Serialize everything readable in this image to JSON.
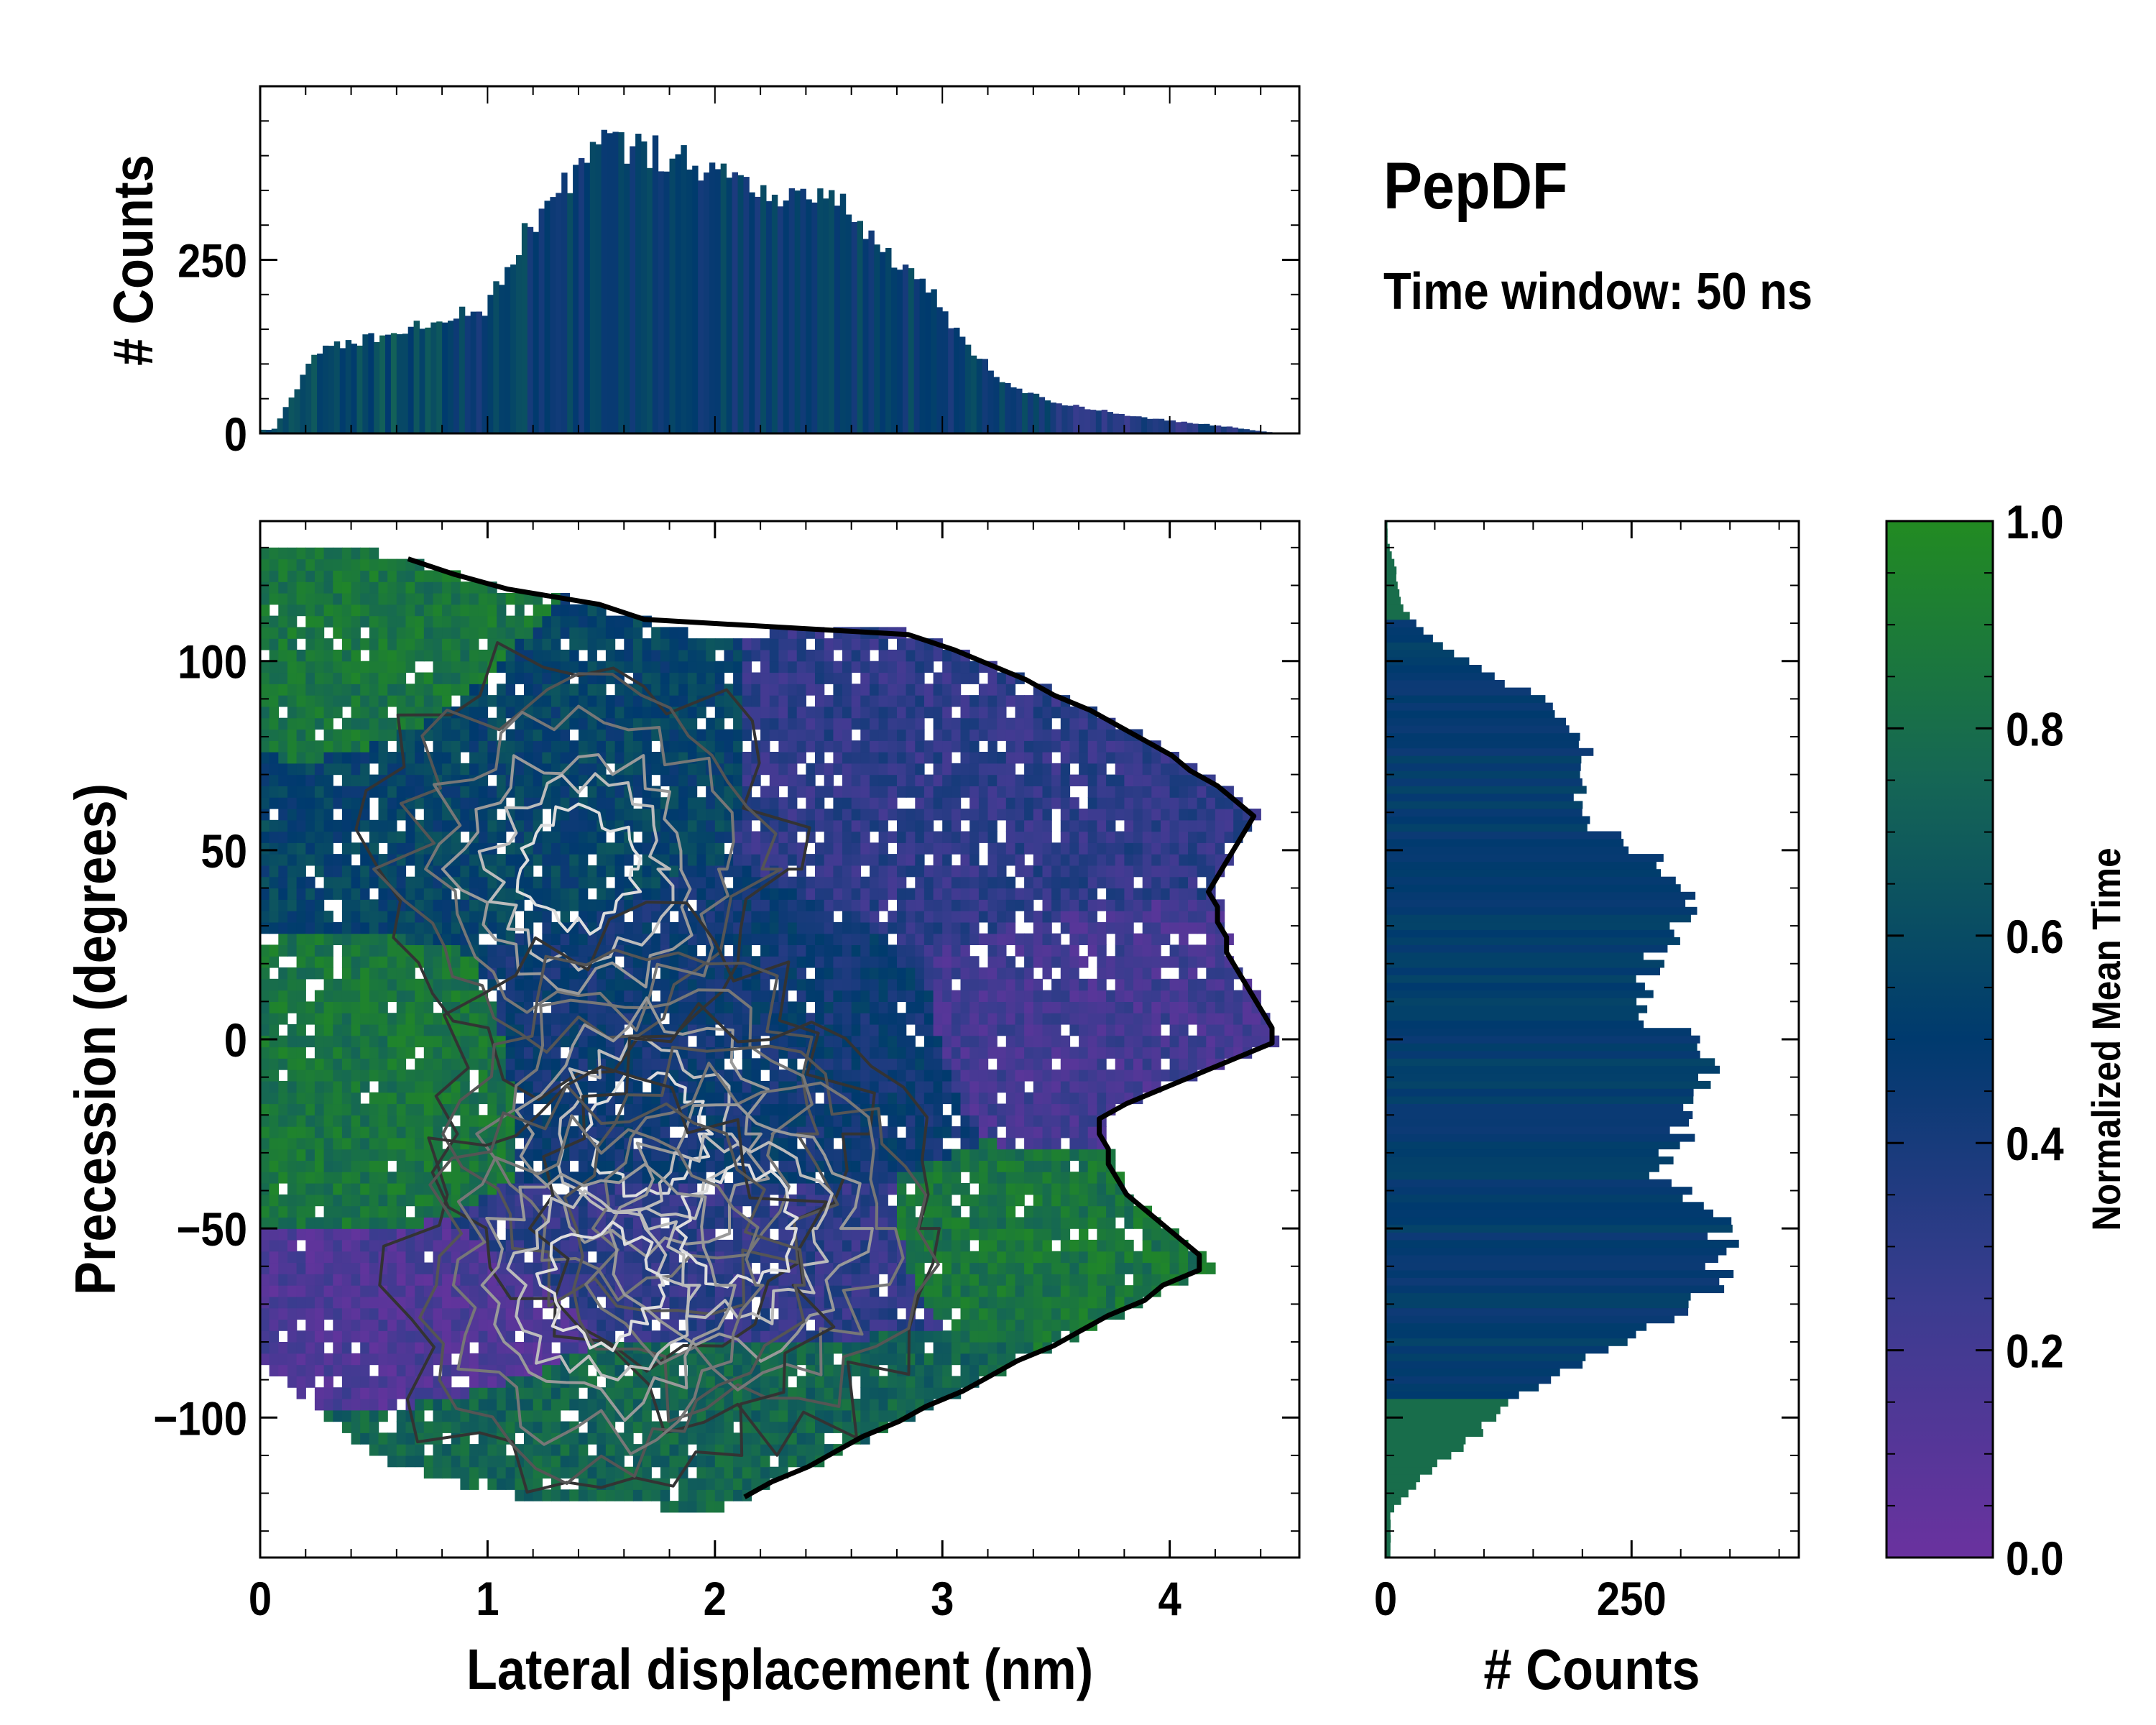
{
  "title": "PepDF",
  "subtitle": "Time window: 50 ns",
  "colors": {
    "cmap_low": "#6a329f",
    "cmap_mid": "#003a6e",
    "cmap_high": "#228b22",
    "frame": "#000000"
  },
  "chart_data": [
    {
      "id": "top-marginal",
      "type": "bar",
      "orientation": "vertical",
      "ylabel": "# Counts",
      "xlim": [
        0,
        4.57
      ],
      "ylim": [
        0,
        500
      ],
      "yticks": [
        0,
        250
      ],
      "ytick_labels": [
        "0",
        "250"
      ],
      "bin_width": 0.025,
      "x": [
        0.06,
        0.25,
        0.5,
        0.75,
        1.0,
        1.1,
        1.25,
        1.4,
        1.5,
        1.6,
        1.75,
        1.9,
        2.0,
        2.1,
        2.25,
        2.4,
        2.5,
        2.6,
        2.75,
        2.9,
        3.0,
        3.1,
        3.25,
        3.4,
        3.5,
        3.75,
        4.0,
        4.25,
        4.4,
        4.5
      ],
      "counts": [
        5,
        120,
        140,
        160,
        180,
        250,
        330,
        380,
        420,
        410,
        405,
        400,
        370,
        360,
        350,
        345,
        330,
        320,
        260,
        220,
        180,
        130,
        80,
        55,
        45,
        30,
        18,
        10,
        3,
        0
      ]
    },
    {
      "id": "joint-heatmap",
      "type": "heatmap",
      "overlay": "contour",
      "xlabel": "Lateral displacement (nm)",
      "ylabel": "Precession (degrees)",
      "xlim": [
        0,
        4.57
      ],
      "ylim": [
        -137,
        137
      ],
      "xticks": [
        0,
        1,
        2,
        3,
        4
      ],
      "xtick_labels": [
        "0",
        "1",
        "2",
        "3",
        "4"
      ],
      "yticks": [
        -100,
        -50,
        0,
        50,
        100
      ],
      "ytick_labels": [
        "−100",
        "−50",
        "0",
        "50",
        "100"
      ],
      "color_variable": "Normalized Mean Time",
      "regions": [
        {
          "name": "upper-left",
          "x": [
            0.0,
            1.1
          ],
          "y": [
            60,
            135
          ],
          "mean_time": 0.85
        },
        {
          "name": "upper-center",
          "x": [
            0.0,
            2.0
          ],
          "y": [
            30,
            110
          ],
          "mean_time": 0.55
        },
        {
          "name": "upper-right",
          "x": [
            2.2,
            4.5
          ],
          "y": [
            20,
            110
          ],
          "mean_time": 0.3
        },
        {
          "name": "middle-left",
          "x": [
            0.0,
            1.0
          ],
          "y": [
            -40,
            20
          ],
          "mean_time": 0.85
        },
        {
          "name": "middle-center",
          "x": [
            1.0,
            3.0
          ],
          "y": [
            -40,
            40
          ],
          "mean_time": 0.45
        },
        {
          "name": "middle-right",
          "x": [
            3.0,
            4.5
          ],
          "y": [
            -20,
            40
          ],
          "mean_time": 0.2
        },
        {
          "name": "lower-left",
          "x": [
            0.0,
            1.5
          ],
          "y": [
            -90,
            -60
          ],
          "mean_time": 0.15
        },
        {
          "name": "lower-center",
          "x": [
            1.0,
            3.0
          ],
          "y": [
            -80,
            -40
          ],
          "mean_time": 0.3
        },
        {
          "name": "lower-right",
          "x": [
            2.8,
            4.2
          ],
          "y": [
            -70,
            -40
          ],
          "mean_time": 0.85
        },
        {
          "name": "bottom",
          "x": [
            0.5,
            3.6
          ],
          "y": [
            -125,
            -80
          ],
          "mean_time": 0.75
        }
      ],
      "density_peaks": [
        {
          "x": 1.4,
          "y": 45
        },
        {
          "x": 1.7,
          "y": -25
        },
        {
          "x": 2.1,
          "y": -50
        },
        {
          "x": 1.5,
          "y": -65
        }
      ]
    },
    {
      "id": "right-marginal",
      "type": "bar",
      "orientation": "horizontal",
      "xlabel": "# Counts",
      "xlim": [
        0,
        420
      ],
      "xticks": [
        0,
        250
      ],
      "xtick_labels": [
        "0",
        "250"
      ],
      "ylim": [
        -137,
        137
      ],
      "bin_width": 2,
      "y": [
        -125,
        -115,
        -105,
        -95,
        -85,
        -75,
        -65,
        -55,
        -50,
        -45,
        -35,
        -25,
        -15,
        -5,
        0,
        5,
        15,
        25,
        35,
        45,
        55,
        65,
        75,
        85,
        95,
        105,
        115,
        125,
        132
      ],
      "counts": [
        5,
        40,
        90,
        130,
        200,
        280,
        340,
        350,
        345,
        320,
        280,
        300,
        320,
        330,
        310,
        270,
        260,
        280,
        310,
        290,
        220,
        200,
        210,
        190,
        120,
        50,
        15,
        10,
        2
      ]
    },
    {
      "id": "colorbar",
      "type": "colorbar",
      "label": "Normalized Mean Time",
      "range": [
        0.0,
        1.0
      ],
      "ticks": [
        0.0,
        0.2,
        0.4,
        0.6,
        0.8,
        1.0
      ],
      "tick_labels": [
        "0.0",
        "0.2",
        "0.4",
        "0.6",
        "0.8",
        "1.0"
      ]
    }
  ]
}
